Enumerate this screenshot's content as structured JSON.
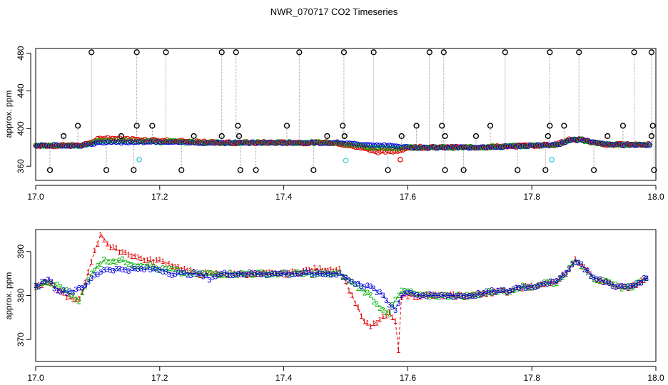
{
  "figure_title": "NWR_070717  CO2 Timeseries",
  "colors": {
    "series1": "#e00000",
    "series2": "#00b000",
    "series3": "#0000e0",
    "outlier": "#000000",
    "flag": "#40d0d0",
    "stem": "#9a9a9a"
  },
  "chart_data": [
    {
      "type": "scatter",
      "panel": "top",
      "title": "",
      "xlabel": "",
      "ylabel": "approx. ppm",
      "xlim": [
        17.0,
        18.0
      ],
      "ylim": [
        345,
        485
      ],
      "xticks": [
        17.0,
        17.2,
        17.4,
        17.6,
        17.8,
        18.0
      ],
      "xtick_labels": [
        "17.0",
        "17.2",
        "17.4",
        "17.6",
        "17.8",
        "18.0"
      ],
      "yticks": [
        360,
        400,
        440,
        480
      ],
      "ytick_labels": [
        "360",
        "400",
        "440",
        "480"
      ],
      "baseline_knots": [
        [
          17.0,
          382
        ],
        [
          17.07,
          382
        ],
        [
          17.08,
          383
        ],
        [
          17.1,
          385
        ],
        [
          17.16,
          386
        ],
        [
          17.18,
          386
        ],
        [
          17.25,
          385
        ],
        [
          17.32,
          385
        ],
        [
          17.34,
          385
        ],
        [
          17.49,
          385
        ],
        [
          17.5,
          384
        ],
        [
          17.56,
          382
        ],
        [
          17.6,
          380
        ],
        [
          17.7,
          380
        ],
        [
          17.76,
          381
        ],
        [
          17.84,
          383
        ],
        [
          17.86,
          388
        ],
        [
          17.88,
          388
        ],
        [
          17.9,
          385
        ],
        [
          17.92,
          383
        ],
        [
          17.99,
          383
        ]
      ],
      "series_offsets": {
        "red": [
          [
            17.08,
            0
          ],
          [
            17.11,
            5
          ],
          [
            17.14,
            3
          ],
          [
            17.18,
            2
          ],
          [
            17.3,
            0
          ],
          [
            17.48,
            0
          ],
          [
            17.52,
            -3
          ],
          [
            17.55,
            -7
          ],
          [
            17.58,
            -5
          ],
          [
            17.6,
            0
          ],
          [
            17.99,
            0
          ]
        ]
      },
      "outliers_high": [
        17.09,
        17.163,
        17.21,
        17.3,
        17.323,
        17.425,
        17.497,
        17.545,
        17.635,
        17.658,
        17.757,
        17.829,
        17.876,
        17.965,
        17.993
      ],
      "outliers_high_value": 481,
      "outliers_mid": [
        [
          17.045,
          392
        ],
        [
          17.068,
          403
        ],
        [
          17.138,
          392
        ],
        [
          17.163,
          403
        ],
        [
          17.188,
          403
        ],
        [
          17.255,
          392
        ],
        [
          17.3,
          392
        ],
        [
          17.326,
          403
        ],
        [
          17.328,
          392
        ],
        [
          17.405,
          403
        ],
        [
          17.47,
          392
        ],
        [
          17.495,
          403
        ],
        [
          17.498,
          392
        ],
        [
          17.59,
          392
        ],
        [
          17.614,
          403
        ],
        [
          17.655,
          403
        ],
        [
          17.66,
          392
        ],
        [
          17.71,
          392
        ],
        [
          17.733,
          403
        ],
        [
          17.829,
          403
        ],
        [
          17.826,
          392
        ],
        [
          17.852,
          403
        ],
        [
          17.922,
          392
        ],
        [
          17.947,
          403
        ],
        [
          17.995,
          403
        ],
        [
          17.993,
          392
        ]
      ],
      "outliers_low": [
        17.023,
        17.114,
        17.158,
        17.235,
        17.33,
        17.355,
        17.448,
        17.568,
        17.66,
        17.69,
        17.777,
        17.822,
        17.9,
        17.997
      ],
      "outliers_low_value": 356,
      "flagged": [
        [
          17.167,
          367
        ],
        [
          17.5,
          366
        ],
        [
          17.832,
          367
        ]
      ],
      "red_dip": [
        [
          17.588,
          367
        ]
      ]
    },
    {
      "type": "line",
      "panel": "bottom",
      "title": "",
      "xlabel": "",
      "ylabel": "approx. ppm",
      "xlim": [
        17.0,
        18.0
      ],
      "ylim": [
        365,
        395
      ],
      "xticks": [
        17.0,
        17.2,
        17.4,
        17.6,
        17.8,
        18.0
      ],
      "xtick_labels": [
        "17.0",
        "17.2",
        "17.4",
        "17.6",
        "17.8",
        "18.0"
      ],
      "yticks": [
        370,
        380,
        390
      ],
      "ytick_labels": [
        "370",
        "380",
        "390"
      ],
      "series": [
        {
          "name": "1",
          "marker": "1",
          "color_key": "series1",
          "x": [
            17.0,
            17.02,
            17.04,
            17.06,
            17.07,
            17.08,
            17.09,
            17.1,
            17.105,
            17.12,
            17.14,
            17.16,
            17.18,
            17.2,
            17.22,
            17.24,
            17.26,
            17.3,
            17.32,
            17.34,
            17.4,
            17.45,
            17.48,
            17.49,
            17.5,
            17.51,
            17.52,
            17.53,
            17.54,
            17.55,
            17.56,
            17.57,
            17.58,
            17.585,
            17.59,
            17.6,
            17.62,
            17.64,
            17.66,
            17.7,
            17.74,
            17.76,
            17.78,
            17.8,
            17.82,
            17.84,
            17.86,
            17.87,
            17.88,
            17.9,
            17.92,
            17.94,
            17.96,
            17.985
          ],
          "y": [
            382,
            383,
            381,
            379,
            379,
            383,
            388,
            392,
            394,
            391,
            390,
            389,
            388,
            388,
            387,
            386,
            385,
            385,
            385,
            385,
            385,
            386,
            386,
            386,
            383,
            380,
            377,
            374,
            373,
            374,
            375,
            376,
            374,
            368,
            380,
            380,
            380,
            380,
            380,
            380,
            381,
            381,
            382,
            382,
            383,
            383,
            386,
            388,
            387,
            384,
            383,
            382,
            382,
            384
          ]
        },
        {
          "name": "2",
          "marker": "2",
          "color_key": "series2",
          "x": [
            17.0,
            17.02,
            17.04,
            17.06,
            17.07,
            17.08,
            17.09,
            17.1,
            17.11,
            17.12,
            17.14,
            17.16,
            17.18,
            17.2,
            17.22,
            17.24,
            17.26,
            17.3,
            17.34,
            17.4,
            17.45,
            17.48,
            17.49,
            17.5,
            17.52,
            17.54,
            17.55,
            17.56,
            17.57,
            17.58,
            17.59,
            17.6,
            17.62,
            17.64,
            17.66,
            17.7,
            17.74,
            17.76,
            17.78,
            17.8,
            17.82,
            17.84,
            17.86,
            17.87,
            17.88,
            17.9,
            17.92,
            17.94,
            17.96,
            17.985
          ],
          "y": [
            382,
            383,
            382,
            380,
            379,
            382,
            385,
            387,
            388,
            388,
            388,
            387,
            387,
            386,
            386,
            385,
            385,
            385,
            385,
            385,
            385,
            385,
            385,
            384,
            382,
            380,
            378,
            377,
            376,
            379,
            381,
            381,
            380,
            380,
            380,
            380,
            381,
            381,
            382,
            382,
            383,
            383,
            386,
            388,
            387,
            384,
            383,
            382,
            382,
            384
          ]
        },
        {
          "name": "3",
          "marker": "3",
          "color_key": "series3",
          "x": [
            17.0,
            17.01,
            17.02,
            17.03,
            17.04,
            17.06,
            17.07,
            17.08,
            17.09,
            17.1,
            17.11,
            17.12,
            17.14,
            17.16,
            17.18,
            17.2,
            17.22,
            17.24,
            17.26,
            17.28,
            17.3,
            17.34,
            17.4,
            17.45,
            17.48,
            17.49,
            17.5,
            17.51,
            17.52,
            17.53,
            17.54,
            17.55,
            17.56,
            17.57,
            17.58,
            17.59,
            17.6,
            17.62,
            17.64,
            17.66,
            17.7,
            17.74,
            17.76,
            17.78,
            17.8,
            17.82,
            17.84,
            17.85,
            17.86,
            17.87,
            17.88,
            17.9,
            17.92,
            17.94,
            17.96,
            17.985
          ],
          "y": [
            382,
            383,
            384,
            382,
            381,
            381,
            382,
            382,
            384,
            385,
            386,
            386,
            386,
            386,
            386,
            386,
            385,
            385,
            385,
            384,
            385,
            385,
            385,
            385,
            385,
            385,
            384,
            383,
            383,
            382,
            382,
            381,
            380,
            378,
            377,
            380,
            381,
            380,
            380,
            380,
            380,
            381,
            381,
            382,
            382,
            383,
            383,
            385,
            386,
            388,
            387,
            384,
            383,
            382,
            382,
            384
          ]
        }
      ]
    }
  ]
}
